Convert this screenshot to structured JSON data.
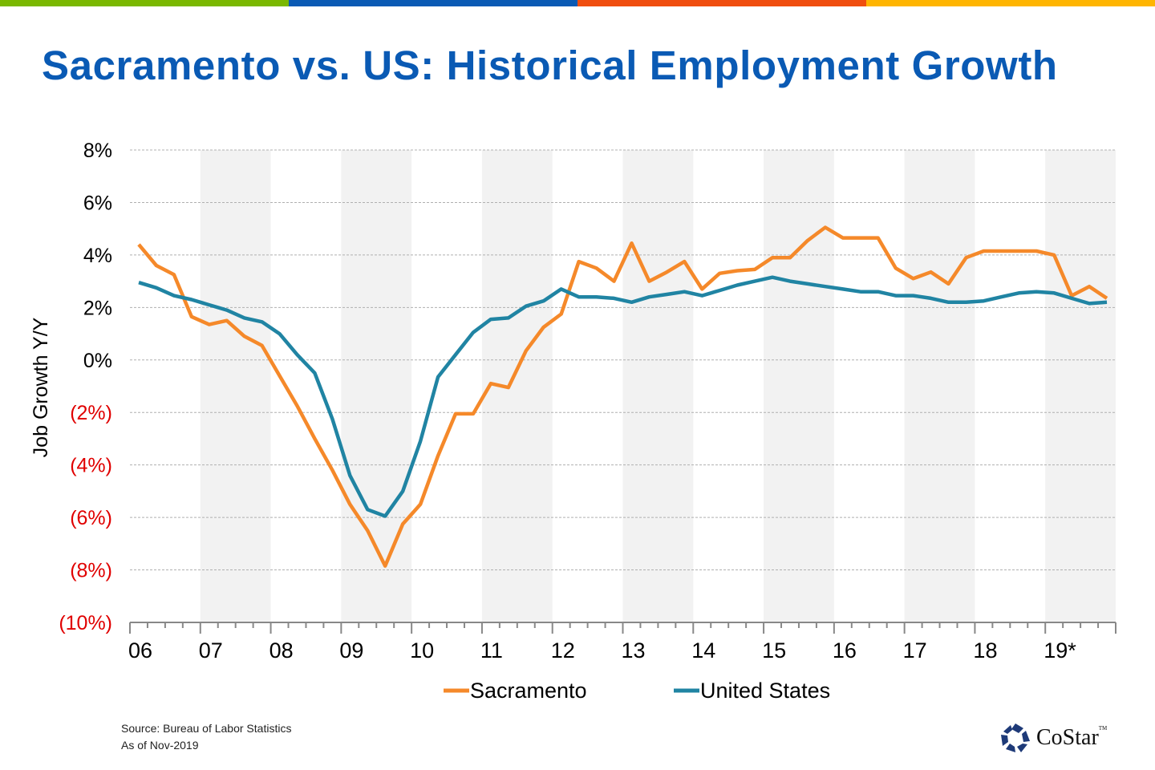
{
  "title": "Sacramento vs. US: Historical Employment Growth",
  "top_bar_colors": [
    "#7AB800",
    "#0A5AB4",
    "#F04E0F",
    "#FFB500"
  ],
  "source": "Source: Bureau of Labor Statistics",
  "as_of": "As of Nov-2019",
  "logo": {
    "text": "CoStar",
    "tm": "TM",
    "color": "#1E3A78"
  },
  "chart_data": {
    "type": "line",
    "title": "Sacramento vs. US: Historical Employment Growth",
    "ylabel": "Job Growth Y/Y",
    "xlabel": "",
    "ylim": [
      -10,
      8
    ],
    "yticks": [
      8,
      6,
      4,
      2,
      0,
      -2,
      -4,
      -6,
      -8,
      -10
    ],
    "ytick_labels": [
      "8%",
      "6%",
      "4%",
      "2%",
      "0%",
      "(2%)",
      "(4%)",
      "(6%)",
      "(8%)",
      "(10%)"
    ],
    "negative_label_color": "#E00000",
    "x_tick_labels": [
      "06",
      "07",
      "08",
      "09",
      "10",
      "11",
      "12",
      "13",
      "14",
      "15",
      "16",
      "17",
      "18",
      "19*"
    ],
    "x_frequency": "quarterly",
    "shaded_years": [
      "07",
      "09",
      "11",
      "13",
      "15",
      "17",
      "19*"
    ],
    "grid": "horizontal dashed",
    "legend_position": "bottom",
    "series": [
      {
        "name": "Sacramento",
        "color": "#F5892A",
        "values": [
          4.4,
          3.6,
          3.25,
          1.65,
          1.35,
          1.5,
          0.9,
          0.55,
          -0.6,
          -1.75,
          -3.0,
          -4.2,
          -5.5,
          -6.5,
          -7.85,
          -6.25,
          -5.5,
          -3.65,
          -2.05,
          -2.05,
          -0.9,
          -1.05,
          0.35,
          1.25,
          1.75,
          3.75,
          3.5,
          3.0,
          4.45,
          3.0,
          3.35,
          3.75,
          2.7,
          3.3,
          3.4,
          3.45,
          3.9,
          3.9,
          4.55,
          5.05,
          4.65,
          4.65,
          4.65,
          3.5,
          3.1,
          3.35,
          2.9,
          3.9,
          4.15,
          4.15,
          4.15,
          4.15,
          4.0,
          2.45,
          2.8,
          2.35
        ]
      },
      {
        "name": "United States",
        "color": "#2084A3",
        "values": [
          2.95,
          2.75,
          2.45,
          2.3,
          2.1,
          1.9,
          1.6,
          1.45,
          1.0,
          0.2,
          -0.5,
          -2.25,
          -4.4,
          -5.7,
          -5.95,
          -5.0,
          -3.1,
          -0.65,
          0.2,
          1.05,
          1.55,
          1.6,
          2.05,
          2.25,
          2.7,
          2.4,
          2.4,
          2.35,
          2.2,
          2.4,
          2.5,
          2.6,
          2.45,
          2.65,
          2.85,
          3.0,
          3.15,
          3.0,
          2.9,
          2.8,
          2.7,
          2.6,
          2.6,
          2.45,
          2.45,
          2.35,
          2.2,
          2.2,
          2.25,
          2.4,
          2.55,
          2.6,
          2.55,
          2.35,
          2.15,
          2.2
        ]
      }
    ]
  }
}
